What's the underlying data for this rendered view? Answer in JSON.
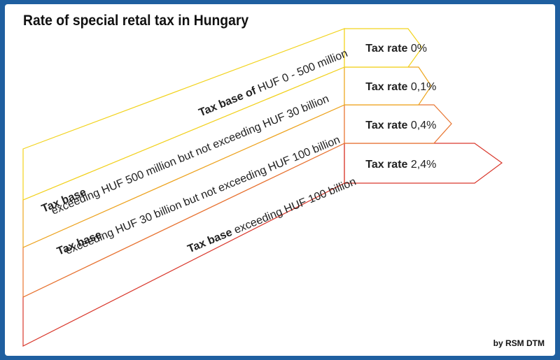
{
  "title": "Rate of special retal tax in Hungary",
  "credit": "by RSM DTM",
  "colors": {
    "frame": "#1f5fa0",
    "tier1": "#f2d31c",
    "tier2": "#eda61e",
    "tier3": "#e87530",
    "tier4": "#d9382c"
  },
  "tiers": [
    {
      "base_bold": "Tax base of",
      "base_text": " HUF 0 - 500 million",
      "rate_label": "Tax rate",
      "rate_value": "0%"
    },
    {
      "base_bold": "Tax base",
      "base_text": "exceeding HUF 500 million but not exceeding HUF 30 billion",
      "rate_label": "Tax rate",
      "rate_value": "0,1%"
    },
    {
      "base_bold": "Tax base",
      "base_text": "exceeding HUF 30 billion but not exceeding HUF 100 billion",
      "rate_label": "Tax rate",
      "rate_value": "0,4%"
    },
    {
      "base_bold": "Tax base",
      "base_text": " exceeding HUF 100 billion",
      "rate_label": "Tax rate",
      "rate_value": "2,4%"
    }
  ]
}
